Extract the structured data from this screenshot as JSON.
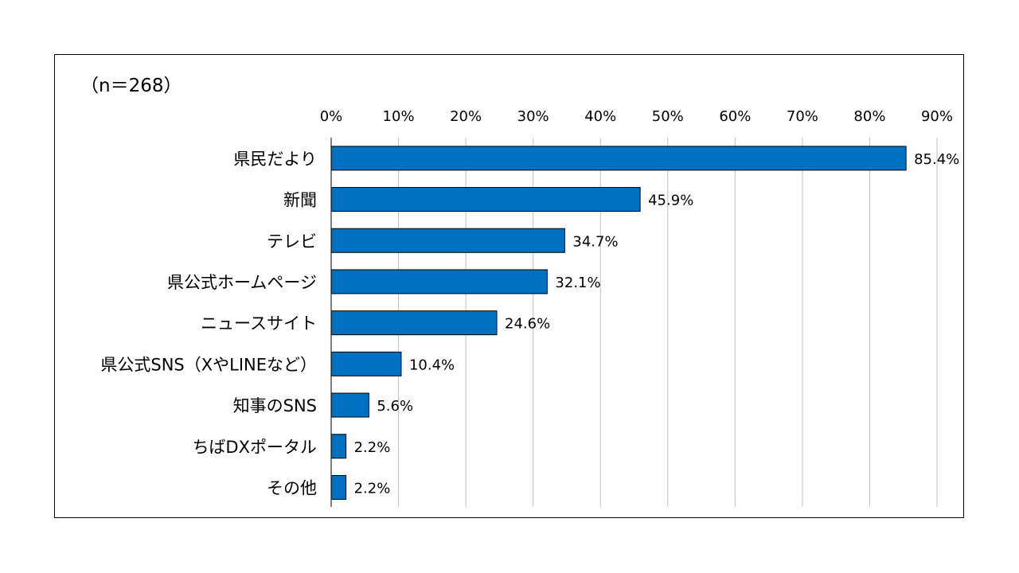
{
  "chart_data": {
    "type": "bar",
    "orientation": "horizontal",
    "title": "",
    "subtitle": "（n＝268）",
    "categories": [
      "県民だより",
      "新聞",
      "テレビ",
      "県公式ホームページ",
      "ニュースサイト",
      "県公式SNS（XやLINEなど）",
      "知事のSNS",
      "ちばDXポータル",
      "その他"
    ],
    "values": [
      85.4,
      45.9,
      34.7,
      32.1,
      24.6,
      10.4,
      5.6,
      2.2,
      2.2
    ],
    "data_labels": [
      "85.4%",
      "45.9%",
      "34.7%",
      "32.1%",
      "24.6%",
      "10.4%",
      "5.6%",
      "2.2%",
      "2.2%"
    ],
    "xlim": [
      0,
      90
    ],
    "ticks": [
      0,
      10,
      20,
      30,
      40,
      50,
      60,
      70,
      80,
      90
    ],
    "tick_labels": [
      "0%",
      "10%",
      "20%",
      "30%",
      "40%",
      "50%",
      "60%",
      "70%",
      "80%",
      "90%"
    ],
    "axis_position": "top",
    "grid": true,
    "legend": "none",
    "colors": {
      "bar": "#0070C0",
      "bar_border": "#000000",
      "grid": "#BFBFBF",
      "axis": "#000000"
    }
  }
}
